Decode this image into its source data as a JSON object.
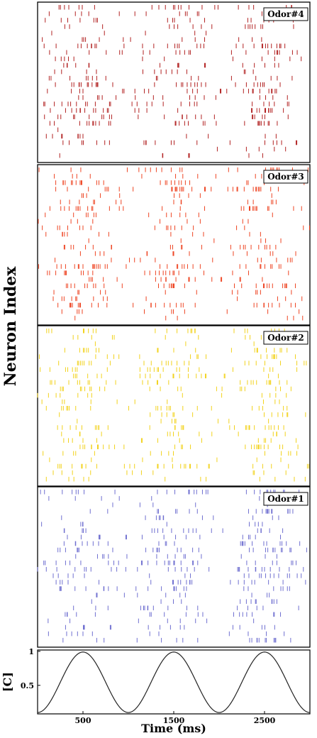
{
  "chart_data": [
    {
      "type": "raster",
      "panels": [
        {
          "name": "Odor#4",
          "color": "#b22222",
          "neuron_count": 24
        },
        {
          "name": "Odor#3",
          "color": "#ee4422",
          "neuron_count": 24
        },
        {
          "name": "Odor#2",
          "color": "#f2d21c",
          "neuron_count": 24
        },
        {
          "name": "Odor#1",
          "color": "#6f6fd0",
          "neuron_count": 24
        }
      ],
      "ylabel": "Neuron Index",
      "xlim": [
        0,
        3000
      ],
      "oscillation_peaks_ms": [
        500,
        1500,
        2500
      ]
    },
    {
      "type": "line",
      "ylabel": "[C]",
      "xlabel": "Time (ms)",
      "xlim": [
        0,
        3000
      ],
      "ylim": [
        0.08,
        1.02
      ],
      "xticks": [
        500,
        1500,
        2500
      ],
      "yticks": [
        0.5,
        1
      ],
      "x": [
        0,
        100,
        200,
        300,
        400,
        500,
        600,
        700,
        800,
        900,
        1000,
        1100,
        1200,
        1300,
        1400,
        1500,
        1600,
        1700,
        1800,
        1900,
        2000,
        2100,
        2200,
        2300,
        2400,
        2500,
        2600,
        2700,
        2800,
        2900,
        3000
      ],
      "y": [
        0.1,
        0.18,
        0.39,
        0.65,
        0.87,
        0.99,
        0.87,
        0.65,
        0.39,
        0.18,
        0.1,
        0.18,
        0.39,
        0.65,
        0.87,
        0.99,
        0.87,
        0.65,
        0.39,
        0.18,
        0.1,
        0.18,
        0.39,
        0.65,
        0.87,
        0.99,
        0.87,
        0.65,
        0.39,
        0.18,
        0.1
      ]
    }
  ]
}
